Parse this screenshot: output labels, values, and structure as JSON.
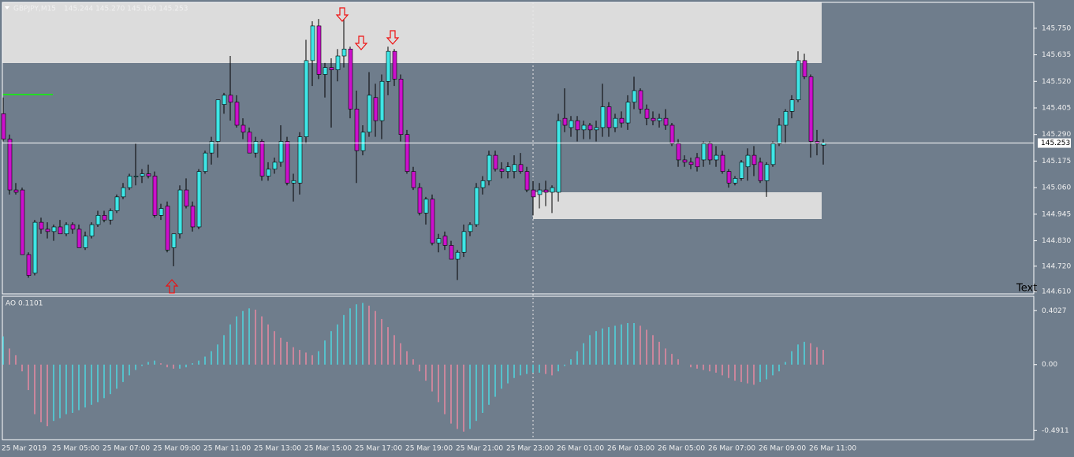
{
  "chart_data": [
    {
      "type": "candlestick",
      "title": "GBPJPY,M15",
      "subtitle": "145.244 145.270 145.160 145.253",
      "annotation": "Text",
      "categories": [
        "25 Mar 2019",
        null,
        null,
        null,
        null,
        null,
        null,
        null,
        "25 Mar 05:00",
        null,
        null,
        null,
        null,
        null,
        null,
        null,
        "25 Mar 07:00",
        null,
        null,
        null,
        null,
        null,
        null,
        null,
        "25 Mar 09:00",
        null,
        null,
        null,
        null,
        null,
        null,
        null,
        "25 Mar 11:00",
        null,
        null,
        null,
        null,
        null,
        null,
        null,
        "25 Mar 13:00",
        null,
        null,
        null,
        null,
        null,
        null,
        null,
        "25 Mar 15:00",
        null,
        null,
        null,
        null,
        null,
        null,
        null,
        "25 Mar 17:00",
        null,
        null,
        null,
        null,
        null,
        null,
        null,
        "25 Mar 19:00",
        null,
        null,
        null,
        null,
        null,
        null,
        null,
        "25 Mar 21:00",
        null,
        null,
        null,
        null,
        null,
        null,
        null,
        "25 Mar 23:00",
        null,
        null,
        null,
        null,
        null,
        null,
        null,
        "26 Mar 01:00",
        null,
        null,
        null,
        null,
        null,
        null,
        null,
        "26 Mar 03:00",
        null,
        null,
        null,
        null,
        null,
        null,
        null,
        "26 Mar 05:00",
        null,
        null,
        null,
        null,
        null,
        null,
        null,
        "26 Mar 07:00",
        null,
        null,
        null,
        null,
        null,
        null,
        null,
        "26 Mar 09:00",
        null,
        null,
        null,
        null,
        null,
        null,
        null,
        "26 Mar 11:00",
        null,
        null
      ],
      "values": [
        [
          145.38,
          145.45,
          145.26,
          145.27
        ],
        [
          145.27,
          145.29,
          145.03,
          145.05
        ],
        [
          145.05,
          145.08,
          145.03,
          145.04
        ],
        [
          145.05,
          145.06,
          144.77,
          144.77
        ],
        [
          144.77,
          144.78,
          144.67,
          144.68
        ],
        [
          144.69,
          144.92,
          144.68,
          144.91
        ],
        [
          144.91,
          144.93,
          144.86,
          144.88
        ],
        [
          144.88,
          144.91,
          144.84,
          144.87
        ],
        [
          144.87,
          144.9,
          144.83,
          144.89
        ],
        [
          144.89,
          144.92,
          144.86,
          144.86
        ],
        [
          144.86,
          144.91,
          144.85,
          144.9
        ],
        [
          144.9,
          144.91,
          144.86,
          144.88
        ],
        [
          144.88,
          144.9,
          144.8,
          144.8
        ],
        [
          144.8,
          144.87,
          144.79,
          144.85
        ],
        [
          144.85,
          144.91,
          144.84,
          144.9
        ],
        [
          144.9,
          144.96,
          144.89,
          144.94
        ],
        [
          144.94,
          144.96,
          144.91,
          144.92
        ],
        [
          144.92,
          144.97,
          144.9,
          144.96
        ],
        [
          144.96,
          145.03,
          144.95,
          145.02
        ],
        [
          145.02,
          145.08,
          145.01,
          145.06
        ],
        [
          145.06,
          145.12,
          145.05,
          145.11
        ],
        [
          145.11,
          145.25,
          145.07,
          145.11
        ],
        [
          145.11,
          145.14,
          145.08,
          145.12
        ],
        [
          145.12,
          145.16,
          145.1,
          145.11
        ],
        [
          145.11,
          145.13,
          144.93,
          144.94
        ],
        [
          144.94,
          144.99,
          144.92,
          144.97
        ],
        [
          144.98,
          145.0,
          144.78,
          144.79
        ],
        [
          144.8,
          144.86,
          144.72,
          144.86
        ],
        [
          144.86,
          145.07,
          144.84,
          145.05
        ],
        [
          145.05,
          145.1,
          144.97,
          144.98
        ],
        [
          144.98,
          145.0,
          144.87,
          144.89
        ],
        [
          144.89,
          145.14,
          144.88,
          145.13
        ],
        [
          145.13,
          145.22,
          145.12,
          145.21
        ],
        [
          145.21,
          145.28,
          145.16,
          145.26
        ],
        [
          145.26,
          145.44,
          145.19,
          145.44
        ],
        [
          145.42,
          145.47,
          145.38,
          145.46
        ],
        [
          145.46,
          145.63,
          145.35,
          145.43
        ],
        [
          145.43,
          145.46,
          145.32,
          145.33
        ],
        [
          145.33,
          145.36,
          145.27,
          145.3
        ],
        [
          145.3,
          145.32,
          145.21,
          145.21
        ],
        [
          145.21,
          145.28,
          145.19,
          145.26
        ],
        [
          145.26,
          145.27,
          145.09,
          145.11
        ],
        [
          145.11,
          145.17,
          145.09,
          145.14
        ],
        [
          145.14,
          145.19,
          145.12,
          145.17
        ],
        [
          145.17,
          145.33,
          145.15,
          145.26
        ],
        [
          145.26,
          145.28,
          145.07,
          145.08
        ],
        [
          145.08,
          145.12,
          145.0,
          145.09
        ],
        [
          145.08,
          145.3,
          145.03,
          145.28
        ],
        [
          145.28,
          145.7,
          145.25,
          145.61
        ],
        [
          145.61,
          145.78,
          145.5,
          145.76
        ],
        [
          145.76,
          145.79,
          145.53,
          145.55
        ],
        [
          145.55,
          145.6,
          145.45,
          145.58
        ],
        [
          145.58,
          145.62,
          145.32,
          145.57
        ],
        [
          145.57,
          145.66,
          145.52,
          145.63
        ],
        [
          145.63,
          145.79,
          145.58,
          145.66
        ],
        [
          145.66,
          145.67,
          145.36,
          145.4
        ],
        [
          145.4,
          145.48,
          145.08,
          145.22
        ],
        [
          145.22,
          145.33,
          145.2,
          145.3
        ],
        [
          145.3,
          145.56,
          145.28,
          145.46
        ],
        [
          145.45,
          145.51,
          145.28,
          145.35
        ],
        [
          145.35,
          145.55,
          145.27,
          145.52
        ],
        [
          145.52,
          145.67,
          145.46,
          145.65
        ],
        [
          145.65,
          145.66,
          145.5,
          145.53
        ],
        [
          145.53,
          145.55,
          145.26,
          145.29
        ],
        [
          145.29,
          145.31,
          145.12,
          145.13
        ],
        [
          145.13,
          145.15,
          145.05,
          145.06
        ],
        [
          145.06,
          145.08,
          144.94,
          144.95
        ],
        [
          144.95,
          145.02,
          144.9,
          145.01
        ],
        [
          145.01,
          145.03,
          144.81,
          144.82
        ],
        [
          144.82,
          144.86,
          144.78,
          144.84
        ],
        [
          144.85,
          144.87,
          144.79,
          144.81
        ],
        [
          144.81,
          144.83,
          144.75,
          144.75
        ],
        [
          144.75,
          144.79,
          144.66,
          144.78
        ],
        [
          144.78,
          144.9,
          144.76,
          144.87
        ],
        [
          144.87,
          144.91,
          144.85,
          144.9
        ],
        [
          144.9,
          145.08,
          144.89,
          145.06
        ],
        [
          145.06,
          145.11,
          145.03,
          145.09
        ],
        [
          145.09,
          145.22,
          145.07,
          145.2
        ],
        [
          145.2,
          145.22,
          145.13,
          145.14
        ],
        [
          145.14,
          145.17,
          145.1,
          145.13
        ],
        [
          145.13,
          145.17,
          145.1,
          145.15
        ],
        [
          145.13,
          145.2,
          145.1,
          145.16
        ],
        [
          145.16,
          145.21,
          145.12,
          145.13
        ],
        [
          145.13,
          145.15,
          145.04,
          145.05
        ],
        [
          145.05,
          145.09,
          144.94,
          145.02
        ],
        [
          145.03,
          145.08,
          144.97,
          145.05
        ],
        [
          145.05,
          145.09,
          144.98,
          145.04
        ],
        [
          145.04,
          145.07,
          144.95,
          145.06
        ],
        [
          145.04,
          145.38,
          145.0,
          145.35
        ],
        [
          145.36,
          145.49,
          145.3,
          145.33
        ],
        [
          145.32,
          145.37,
          145.28,
          145.35
        ],
        [
          145.35,
          145.37,
          145.26,
          145.31
        ],
        [
          145.31,
          145.35,
          145.27,
          145.33
        ],
        [
          145.33,
          145.34,
          145.27,
          145.31
        ],
        [
          145.31,
          145.35,
          145.26,
          145.32
        ],
        [
          145.32,
          145.51,
          145.28,
          145.41
        ],
        [
          145.41,
          145.43,
          145.28,
          145.32
        ],
        [
          145.32,
          145.38,
          145.3,
          145.36
        ],
        [
          145.36,
          145.39,
          145.32,
          145.34
        ],
        [
          145.34,
          145.46,
          145.31,
          145.43
        ],
        [
          145.43,
          145.54,
          145.4,
          145.48
        ],
        [
          145.48,
          145.49,
          145.38,
          145.4
        ],
        [
          145.4,
          145.42,
          145.33,
          145.36
        ],
        [
          145.36,
          145.39,
          145.33,
          145.35
        ],
        [
          145.35,
          145.38,
          145.32,
          145.36
        ],
        [
          145.36,
          145.4,
          145.31,
          145.33
        ],
        [
          145.33,
          145.34,
          145.24,
          145.25
        ],
        [
          145.25,
          145.27,
          145.15,
          145.18
        ],
        [
          145.18,
          145.2,
          145.15,
          145.17
        ],
        [
          145.17,
          145.19,
          145.14,
          145.16
        ],
        [
          145.19,
          145.21,
          145.13,
          145.15
        ],
        [
          145.18,
          145.26,
          145.15,
          145.25
        ],
        [
          145.25,
          145.26,
          145.16,
          145.18
        ],
        [
          145.18,
          145.24,
          145.15,
          145.2
        ],
        [
          145.2,
          145.22,
          145.12,
          145.13
        ],
        [
          145.13,
          145.14,
          145.06,
          145.08
        ],
        [
          145.08,
          145.11,
          145.07,
          145.1
        ],
        [
          145.1,
          145.18,
          145.09,
          145.17
        ],
        [
          145.15,
          145.23,
          145.09,
          145.2
        ],
        [
          145.2,
          145.24,
          145.11,
          145.16
        ],
        [
          145.17,
          145.19,
          145.08,
          145.09
        ],
        [
          145.09,
          145.17,
          145.02,
          145.16
        ],
        [
          145.16,
          145.26,
          145.15,
          145.25
        ],
        [
          145.25,
          145.36,
          145.24,
          145.33
        ],
        [
          145.33,
          145.4,
          145.25,
          145.39
        ],
        [
          145.39,
          145.46,
          145.36,
          145.44
        ],
        [
          145.44,
          145.65,
          145.43,
          145.61
        ],
        [
          145.61,
          145.64,
          145.53,
          145.54
        ],
        [
          145.54,
          145.55,
          145.19,
          145.26
        ],
        [
          145.26,
          145.31,
          145.2,
          145.25
        ],
        [
          145.244,
          145.27,
          145.16,
          145.253
        ]
      ],
      "ylim": [
        144.6,
        145.862
      ],
      "yticks": [
        {
          "value": 145.75,
          "label": "145.750"
        },
        {
          "value": 145.635,
          "label": "145.635"
        },
        {
          "value": 145.52,
          "label": "145.520"
        },
        {
          "value": 145.405,
          "label": "145.405"
        },
        {
          "value": 145.29,
          "label": "145.290"
        },
        {
          "value": 145.175,
          "label": "145.175"
        },
        {
          "value": 145.06,
          "label": "145.060"
        },
        {
          "value": 144.945,
          "label": "144.945"
        },
        {
          "value": 144.83,
          "label": "144.830"
        },
        {
          "value": 144.72,
          "label": "144.720"
        },
        {
          "value": 144.61,
          "label": "144.610"
        }
      ],
      "up_color": "#3fe6e6",
      "down_color": "#cc10cc"
    },
    {
      "type": "bar",
      "title": "AO 0.1101",
      "values": [
        0.21,
        0.12,
        0.07,
        -0.05,
        -0.19,
        -0.37,
        -0.43,
        -0.46,
        -0.42,
        -0.4,
        -0.37,
        -0.36,
        -0.34,
        -0.32,
        -0.3,
        -0.28,
        -0.25,
        -0.22,
        -0.18,
        -0.13,
        -0.08,
        -0.04,
        -0.01,
        0.02,
        0.03,
        0.01,
        -0.02,
        -0.03,
        -0.03,
        -0.02,
        0.01,
        0.03,
        0.06,
        0.1,
        0.15,
        0.22,
        0.3,
        0.36,
        0.4,
        0.42,
        0.41,
        0.36,
        0.3,
        0.25,
        0.2,
        0.17,
        0.13,
        0.11,
        0.09,
        0.07,
        0.1,
        0.18,
        0.25,
        0.3,
        0.37,
        0.42,
        0.45,
        0.46,
        0.44,
        0.4,
        0.34,
        0.28,
        0.22,
        0.16,
        0.1,
        0.04,
        -0.05,
        -0.12,
        -0.2,
        -0.28,
        -0.37,
        -0.44,
        -0.48,
        -0.5,
        -0.48,
        -0.42,
        -0.36,
        -0.3,
        -0.24,
        -0.18,
        -0.14,
        -0.1,
        -0.08,
        -0.07,
        -0.06,
        -0.06,
        -0.07,
        -0.08,
        -0.05,
        -0.01,
        0.04,
        0.1,
        0.16,
        0.22,
        0.25,
        0.27,
        0.28,
        0.29,
        0.3,
        0.31,
        0.31,
        0.29,
        0.26,
        0.22,
        0.17,
        0.12,
        0.08,
        0.04,
        0,
        -0.02,
        -0.03,
        -0.04,
        -0.05,
        -0.06,
        -0.08,
        -0.1,
        -0.12,
        -0.13,
        -0.14,
        -0.15,
        -0.13,
        -0.11,
        -0.08,
        -0.05,
        0.02,
        0.1,
        0.15,
        0.17,
        0.16,
        0.13,
        0.1101
      ],
      "ylim": [
        -0.56,
        0.51
      ],
      "yticks": [
        0.4027,
        {
          "value": 0,
          "label": "0.00"
        },
        -0.4911
      ],
      "up_color": "#4fd8e0",
      "down_color": "#e889a2"
    }
  ]
}
